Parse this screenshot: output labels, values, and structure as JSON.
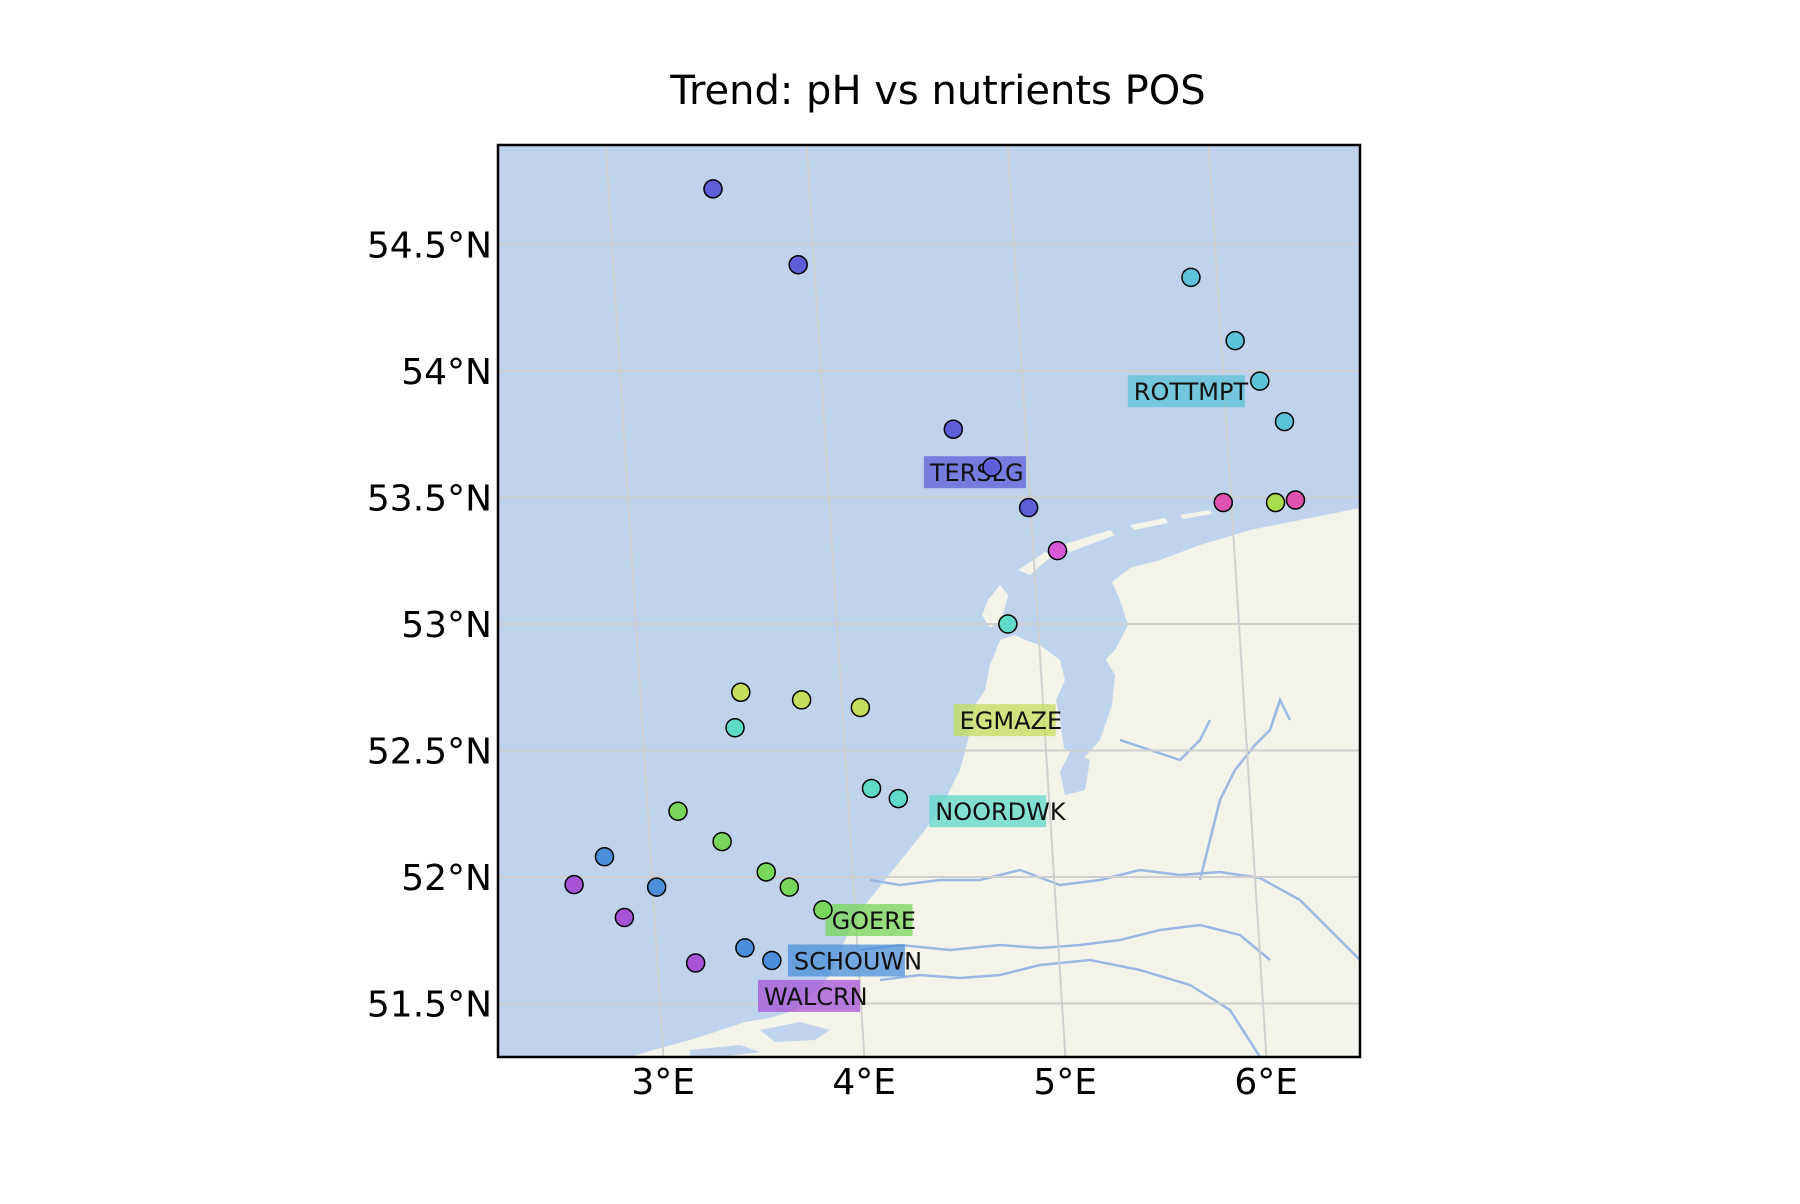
{
  "title": "Trend: pH vs nutrients POS",
  "colors": {
    "sea": "#bfd3ec",
    "land": "#f3f3ea",
    "coast": "#ffffff",
    "river": "#9bb8e0",
    "grid": "#cfcfcf",
    "axes": "#000000"
  },
  "chart_data": {
    "type": "scatter",
    "projection": "map",
    "lon_ticks": [
      3,
      4,
      5,
      6
    ],
    "lon_tick_labels": [
      "3°E",
      "4°E",
      "5°E",
      "6°E"
    ],
    "lat_ticks": [
      51.5,
      52,
      52.5,
      53,
      53.5,
      54,
      54.5
    ],
    "lat_tick_labels": [
      "51.5°N",
      "52°N",
      "52.5°N",
      "53°N",
      "53.5°N",
      "54°N",
      "54.5°N"
    ],
    "grid": true,
    "transects": [
      {
        "name": "TERSLG",
        "color": "#5d5fd8",
        "label_lon": 4.48,
        "label_lat": 53.6,
        "points": [
          [
            3.52,
            54.72
          ],
          [
            3.92,
            54.42
          ],
          [
            4.64,
            53.77
          ],
          [
            4.82,
            53.62
          ],
          [
            4.99,
            53.46
          ]
        ]
      },
      {
        "name": "ROTTMPT",
        "color": "#5bc2d8",
        "label_lon": 5.52,
        "label_lat": 53.92,
        "points": [
          [
            5.87,
            54.37
          ],
          [
            6.07,
            54.12
          ],
          [
            6.18,
            53.96
          ],
          [
            6.29,
            53.8
          ]
        ]
      },
      {
        "name": "EGMAZE",
        "color": "#c4dd5c",
        "label_lon": 4.55,
        "label_lat": 52.62,
        "points": [
          [
            3.5,
            52.73
          ],
          [
            3.8,
            52.7
          ],
          [
            4.09,
            52.67
          ]
        ]
      },
      {
        "name": "NOORDWK",
        "color": "#5ddac8",
        "label_lon": 4.4,
        "label_lat": 52.26,
        "points": [
          [
            3.46,
            52.59
          ],
          [
            4.12,
            52.35
          ],
          [
            4.25,
            52.31
          ],
          [
            4.85,
            53.0
          ]
        ]
      },
      {
        "name": "GOERE",
        "color": "#78d65a",
        "label_lon": 3.85,
        "label_lat": 51.83,
        "points": [
          [
            3.15,
            52.26
          ],
          [
            3.36,
            52.14
          ],
          [
            3.57,
            52.02
          ],
          [
            3.68,
            51.96
          ],
          [
            3.84,
            51.87
          ]
        ]
      },
      {
        "name": "SCHOUWN",
        "color": "#4b8fda",
        "label_lon": 3.65,
        "label_lat": 51.67,
        "points": [
          [
            2.77,
            52.08
          ],
          [
            3.02,
            51.96
          ],
          [
            3.44,
            51.72
          ],
          [
            3.57,
            51.67
          ]
        ]
      },
      {
        "name": "WALCRN",
        "color": "#a653d6",
        "label_lon": 3.49,
        "label_lat": 51.53,
        "points": [
          [
            2.61,
            51.97
          ],
          [
            2.85,
            51.84
          ],
          [
            3.19,
            51.66
          ]
        ]
      },
      {
        "name": "",
        "color": "#d659d6",
        "label_lon": null,
        "label_lat": null,
        "points": [
          [
            5.12,
            53.29
          ]
        ]
      },
      {
        "name": "",
        "color": "#e052b0",
        "label_lon": null,
        "label_lat": null,
        "points": [
          [
            5.96,
            53.48
          ],
          [
            6.32,
            53.49
          ]
        ]
      },
      {
        "name": "",
        "color": "#a8dd4e",
        "label_lon": null,
        "label_lat": null,
        "points": [
          [
            6.22,
            53.48
          ]
        ]
      }
    ]
  }
}
